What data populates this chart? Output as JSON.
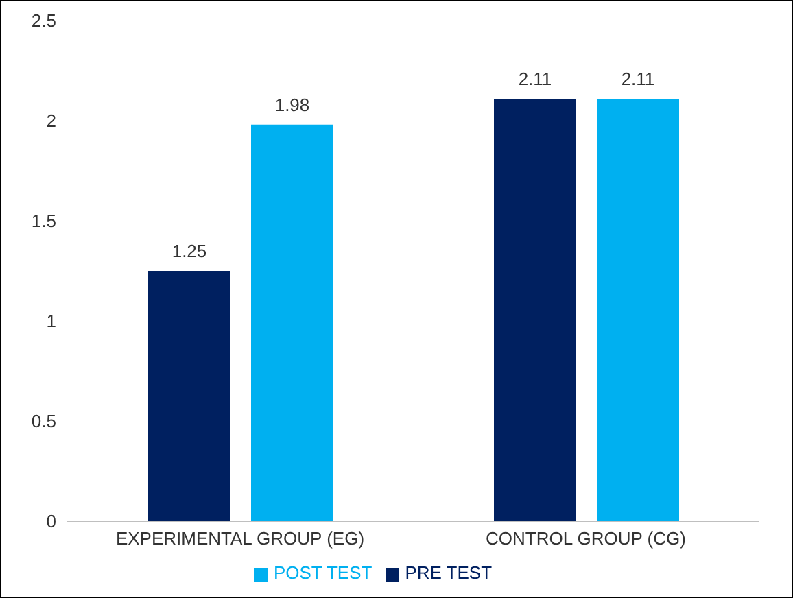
{
  "chart_data": {
    "type": "bar",
    "categories": [
      "EXPERIMENTAL GROUP (EG)",
      "CONTROL GROUP (CG)"
    ],
    "series": [
      {
        "name": "PRE TEST",
        "color": "#002060",
        "values": [
          1.25,
          2.11
        ]
      },
      {
        "name": "POST TEST",
        "color": "#00b0f0",
        "values": [
          1.98,
          2.11
        ]
      }
    ],
    "ylim": [
      0,
      2.5
    ],
    "yticks": [
      0,
      0.5,
      1,
      1.5,
      2,
      2.5
    ],
    "grid": false,
    "legend": "bottom",
    "data_labels": true
  }
}
